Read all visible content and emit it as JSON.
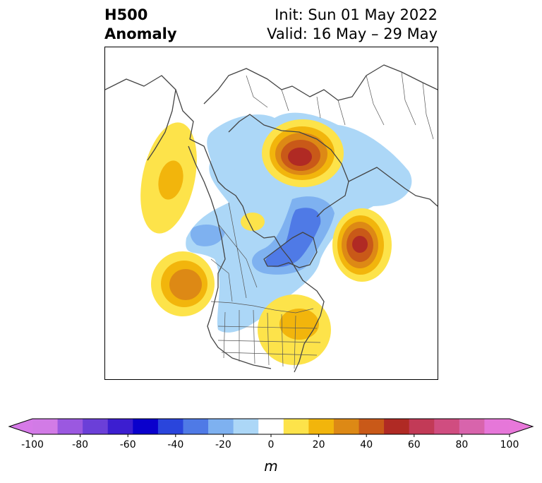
{
  "title": {
    "left_line1": "H500",
    "left_line2": "Anomaly",
    "right_line1": "Init: Sun 01 May 2022",
    "right_line2": "Valid: 16 May – 29 May"
  },
  "colorbar": {
    "unit": "m",
    "tick_labels": [
      "-100",
      "-80",
      "-60",
      "-40",
      "-20",
      "0",
      "20",
      "40",
      "60",
      "80",
      "100"
    ],
    "levels": [
      -100,
      -90,
      -80,
      -70,
      -60,
      -50,
      -40,
      -30,
      -20,
      -10,
      10,
      20,
      30,
      40,
      50,
      60,
      70,
      80,
      90,
      100
    ],
    "colors": [
      "#d27be6",
      "#9b58e0",
      "#6b3fd8",
      "#3c1ed0",
      "#0a00cc",
      "#2a45dc",
      "#4f7ae6",
      "#7eb1f0",
      "#acd7f7",
      "#ffffff",
      "#fde34a",
      "#f2b50c",
      "#dd8915",
      "#c95918",
      "#b02a24",
      "#c23a57",
      "#d04d80",
      "#d864ac",
      "#e677d9"
    ],
    "under_color": "#d67ae8",
    "over_color": "#e878da"
  },
  "map": {
    "projection": "north-polar-stereographic",
    "field": "500 hPa geopotential height anomaly",
    "anomaly_centers": [
      {
        "name": "gulf-of-alaska-positive",
        "peak": 30
      },
      {
        "name": "central-siberia-positive",
        "peak": 60
      },
      {
        "name": "north-atlantic-positive",
        "peak": 60
      },
      {
        "name": "north-pacific-positive",
        "peak": 40
      },
      {
        "name": "eastern-us-positive",
        "peak": 30
      },
      {
        "name": "hudson-bay-greenland-negative",
        "peak": -40
      },
      {
        "name": "arctic-positive-small",
        "peak": 10
      }
    ]
  }
}
